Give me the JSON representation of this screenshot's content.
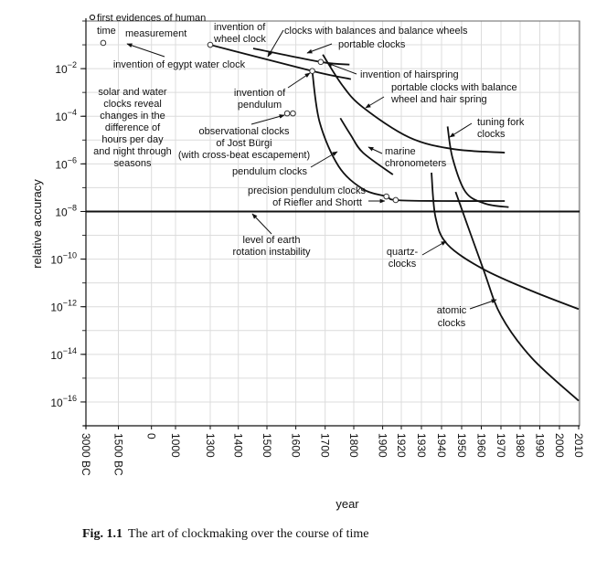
{
  "chart_data": {
    "type": "line",
    "title": "",
    "xlabel": "year",
    "ylabel": "relative accuracy",
    "y_scale": "log10",
    "ylim_log10": [
      -17,
      0
    ],
    "grid": true,
    "x_ticks": [
      {
        "year": -3000,
        "label": "3000 BC"
      },
      {
        "year": -1500,
        "label": "1500 BC"
      },
      {
        "year": 0,
        "label": "0"
      },
      {
        "year": 1000,
        "label": "1000"
      },
      {
        "year": 1300,
        "label": "1300"
      },
      {
        "year": 1400,
        "label": "1400"
      },
      {
        "year": 1500,
        "label": "1500"
      },
      {
        "year": 1600,
        "label": "1600"
      },
      {
        "year": 1700,
        "label": "1700"
      },
      {
        "year": 1800,
        "label": "1800"
      },
      {
        "year": 1900,
        "label": "1900"
      },
      {
        "year": 1920,
        "label": "1920"
      },
      {
        "year": 1930,
        "label": "1930"
      },
      {
        "year": 1940,
        "label": "1940"
      },
      {
        "year": 1950,
        "label": "1950"
      },
      {
        "year": 1960,
        "label": "1960"
      },
      {
        "year": 1970,
        "label": "1970"
      },
      {
        "year": 1980,
        "label": "1980"
      },
      {
        "year": 1990,
        "label": "1990"
      },
      {
        "year": 2000,
        "label": "2000"
      },
      {
        "year": 2010,
        "label": "2010"
      }
    ],
    "y_ticks": [
      {
        "exp": -2,
        "base": "10",
        "sup": "−2"
      },
      {
        "exp": -4,
        "base": "10",
        "sup": "−4"
      },
      {
        "exp": -6,
        "base": "10",
        "sup": "−6"
      },
      {
        "exp": -8,
        "base": "10",
        "sup": "−8"
      },
      {
        "exp": -10,
        "base": "10",
        "sup": "−10"
      },
      {
        "exp": -12,
        "base": "10",
        "sup": "−12"
      },
      {
        "exp": -14,
        "base": "10",
        "sup": "−14"
      },
      {
        "exp": -16,
        "base": "10",
        "sup": "−16"
      }
    ],
    "reference_line": {
      "name": "level of earth rotation instability",
      "log10": -8
    },
    "series": [
      {
        "name": "wheel clocks",
        "points": [
          [
            1300,
            -1.0
          ],
          [
            1656,
            -2.1
          ],
          [
            1790,
            -2.44
          ]
        ]
      },
      {
        "name": "clocks with balances and balance wheels",
        "points": [
          [
            1452,
            -1.15
          ],
          [
            1685,
            -1.72
          ],
          [
            1785,
            -1.83
          ]
        ]
      },
      {
        "name": "pendulum clocks",
        "points": [
          [
            1656,
            -2.1
          ],
          [
            1681,
            -4.24
          ],
          [
            1747,
            -6.1
          ],
          [
            1832,
            -7.06
          ],
          [
            1904,
            -7.37
          ],
          [
            1914,
            -7.52
          ],
          [
            1940,
            -7.56
          ],
          [
            1972,
            -7.56
          ]
        ]
      },
      {
        "name": "portable clocks with balance wheel and hair spring",
        "points": [
          [
            1692,
            -1.41
          ],
          [
            1760,
            -2.7
          ],
          [
            1832,
            -3.63
          ],
          [
            1924,
            -4.89
          ],
          [
            1946,
            -5.38
          ],
          [
            1972,
            -5.53
          ]
        ]
      },
      {
        "name": "marine chronometers",
        "points": [
          [
            1753,
            -4.08
          ],
          [
            1790,
            -4.8
          ],
          [
            1832,
            -5.53
          ],
          [
            1911,
            -6.45
          ]
        ]
      },
      {
        "name": "tuning fork clocks",
        "points": [
          [
            1943,
            -4.43
          ],
          [
            1945.5,
            -5.76
          ],
          [
            1952,
            -7.18
          ],
          [
            1962,
            -7.67
          ],
          [
            1974,
            -7.82
          ]
        ]
      },
      {
        "name": "quartz clocks",
        "points": [
          [
            1935,
            -6.37
          ],
          [
            1937,
            -8.24
          ],
          [
            1943,
            -9.39
          ],
          [
            1961,
            -10.42
          ],
          [
            1986,
            -11.34
          ],
          [
            2010,
            -12.1
          ]
        ]
      },
      {
        "name": "atomic clocks",
        "points": [
          [
            1947,
            -7.18
          ],
          [
            1961,
            -10.42
          ],
          [
            1970,
            -12.37
          ],
          [
            1986,
            -14.16
          ],
          [
            2010,
            -15.95
          ]
        ]
      }
    ],
    "markers": [
      {
        "name": "invention of egypt water clock",
        "year": -2200,
        "log10": -0.92
      },
      {
        "name": "invention of wheel clock",
        "year": 1300,
        "log10": -1.0
      },
      {
        "name": "invention of pendulum",
        "year": 1656,
        "log10": -2.1
      },
      {
        "name": "invention of hairspring",
        "year": 1685,
        "log10": -1.72
      },
      {
        "name": "observational clocks of Jost Bürgi 1",
        "year": 1570,
        "log10": -3.88
      },
      {
        "name": "observational clocks of Jost Bürgi 2",
        "year": 1590,
        "log10": -3.88
      },
      {
        "name": "precision pendulum clock Riefler",
        "year": 1904,
        "log10": -7.37
      },
      {
        "name": "precision pendulum clock Shortt",
        "year": 1914,
        "log10": -7.52
      }
    ],
    "annotations": {
      "first_evidence": [
        "first evidences of human",
        "time",
        "measurement"
      ],
      "egypt": [
        "invention of egypt water clock"
      ],
      "wheel": [
        "invention of",
        "wheel clock"
      ],
      "balances": [
        "clocks with balances and balance wheels"
      ],
      "portable": [
        "portable clocks"
      ],
      "hairspring": [
        "invention of hairspring"
      ],
      "portable_balance": [
        "portable clocks with balance",
        "wheel and hair spring"
      ],
      "solar": [
        "solar and water",
        "clocks reveal",
        "changes in the",
        "difference of",
        "hours per day",
        "and night through",
        "seasons"
      ],
      "pendulum_inv": [
        "invention of",
        "pendulum"
      ],
      "burgi": [
        "observational clocks",
        "of Jost Bürgi",
        "(with cross-beat escapement)"
      ],
      "pendulum_clocks": [
        "pendulum clocks"
      ],
      "precision": [
        "precision pendulum clocks",
        "of Riefler and Shortt"
      ],
      "tuning": [
        "tuning fork",
        "clocks"
      ],
      "marine": [
        "marine",
        "chronometers"
      ],
      "earth": [
        "level of earth",
        "rotation instability"
      ],
      "quartz": [
        "quartz-",
        "clocks"
      ],
      "atomic": [
        "atomic",
        "clocks"
      ]
    }
  },
  "caption": {
    "label": "Fig. 1.1",
    "text": "The art of clockmaking over the course of time"
  }
}
